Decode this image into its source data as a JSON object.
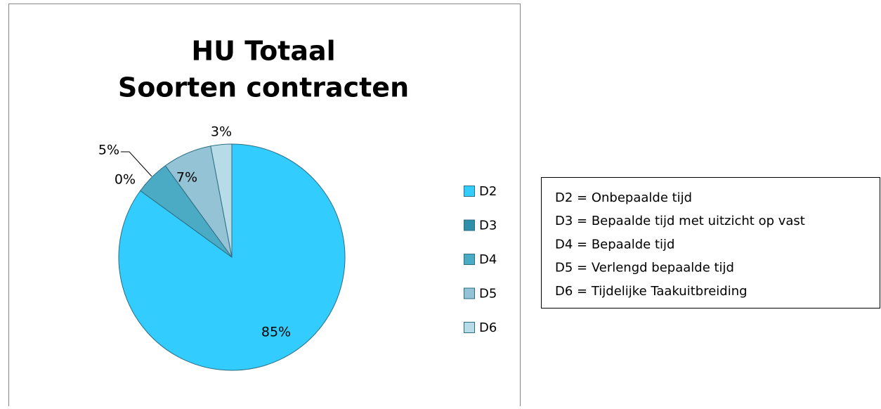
{
  "chart_data": {
    "type": "pie",
    "title": [
      "HU Totaal",
      "Soorten contracten"
    ],
    "categories": [
      "D2",
      "D3",
      "D4",
      "D5",
      "D6"
    ],
    "values": [
      85,
      0,
      5,
      7,
      3
    ],
    "value_labels": [
      "85%",
      "0%",
      "5%",
      "7%",
      "3%"
    ],
    "colors": [
      "#33ccff",
      "#2f8ea8",
      "#4baac4",
      "#93c3d5",
      "#b8dce7"
    ],
    "legend": "right"
  },
  "text_box": {
    "lines": [
      "D2 = Onbepaalde tijd",
      "D3 = Bepaalde tijd met uitzicht op vast",
      "D4 = Bepaalde tijd",
      "D5 = Verlengd bepaalde tijd",
      "D6 = Tijdelijke Taakuitbreiding"
    ]
  }
}
